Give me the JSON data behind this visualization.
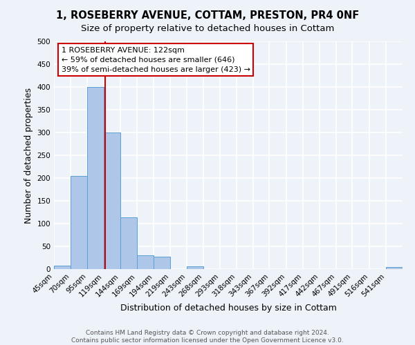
{
  "title": "1, ROSEBERRY AVENUE, COTTAM, PRESTON, PR4 0NF",
  "subtitle": "Size of property relative to detached houses in Cottam",
  "xlabel": "Distribution of detached houses by size in Cottam",
  "ylabel": "Number of detached properties",
  "bin_labels": [
    "45sqm",
    "70sqm",
    "95sqm",
    "119sqm",
    "144sqm",
    "169sqm",
    "194sqm",
    "219sqm",
    "243sqm",
    "268sqm",
    "293sqm",
    "318sqm",
    "343sqm",
    "367sqm",
    "392sqm",
    "417sqm",
    "442sqm",
    "467sqm",
    "491sqm",
    "516sqm",
    "541sqm"
  ],
  "bar_values": [
    8,
    205,
    400,
    300,
    113,
    30,
    27,
    0,
    6,
    0,
    0,
    0,
    0,
    0,
    0,
    0,
    0,
    0,
    0,
    0,
    5
  ],
  "bar_color": "#aec6e8",
  "bar_edge_color": "#5a9fd4",
  "property_line_x": 122,
  "property_line_label": "1 ROSEBERRY AVENUE: 122sqm",
  "annotation_line1": "← 59% of detached houses are smaller (646)",
  "annotation_line2": "39% of semi-detached houses are larger (423) →",
  "annotation_box_color": "#ffffff",
  "annotation_box_edge_color": "#cc0000",
  "vline_color": "#cc0000",
  "ylim": [
    0,
    500
  ],
  "yticks": [
    0,
    50,
    100,
    150,
    200,
    250,
    300,
    350,
    400,
    450,
    500
  ],
  "footer_line1": "Contains HM Land Registry data © Crown copyright and database right 2024.",
  "footer_line2": "Contains public sector information licensed under the Open Government Licence v3.0.",
  "bg_color": "#eef2f9",
  "grid_color": "#ffffff",
  "title_fontsize": 10.5,
  "subtitle_fontsize": 9.5,
  "axis_label_fontsize": 9,
  "tick_fontsize": 7.5,
  "annotation_fontsize": 8,
  "footer_fontsize": 6.5
}
